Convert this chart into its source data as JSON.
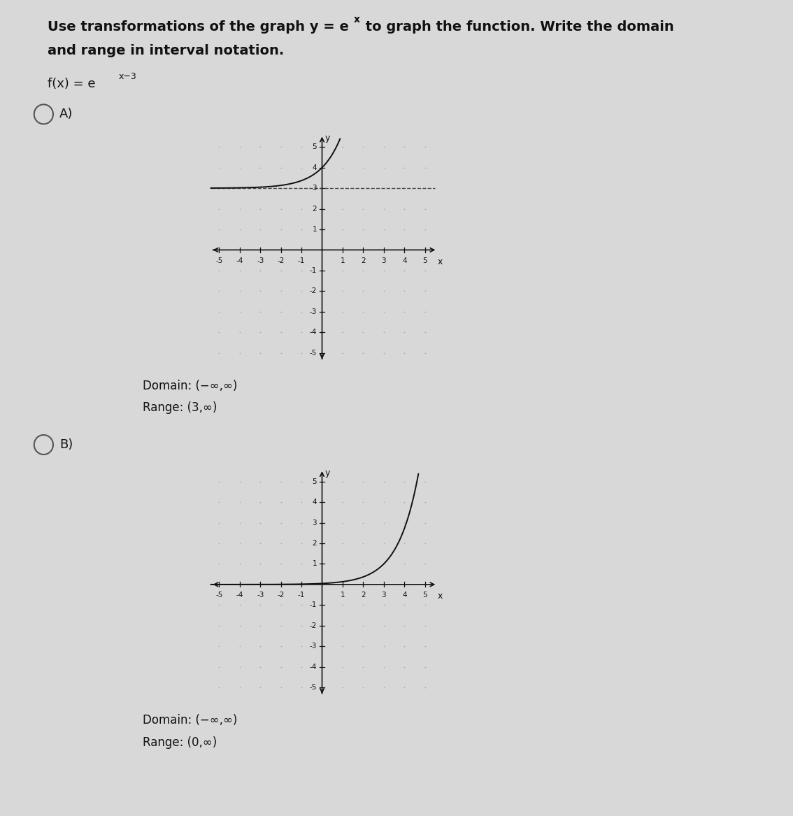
{
  "bg_color": "#d8d8d8",
  "text_color": "#111111",
  "axis_color": "#111111",
  "curve_color": "#111111",
  "dashed_color": "#444444",
  "title_line1": "Use transformations of the graph y = e",
  "title_exp": "x",
  "title_line1_rest": " to graph the function. Write the domain",
  "title_line2": "and range in interval notation.",
  "func_label": "f(x) = e",
  "func_exp": "x−3",
  "option_A": "A)",
  "option_B": "B)",
  "domain_A": "Domain: (−∞,∞)",
  "range_A": "Range: (3,∞)",
  "domain_B": "Domain: (−∞,∞)",
  "range_B": "Range: (0,∞)",
  "axis_min": -5,
  "axis_max": 5
}
